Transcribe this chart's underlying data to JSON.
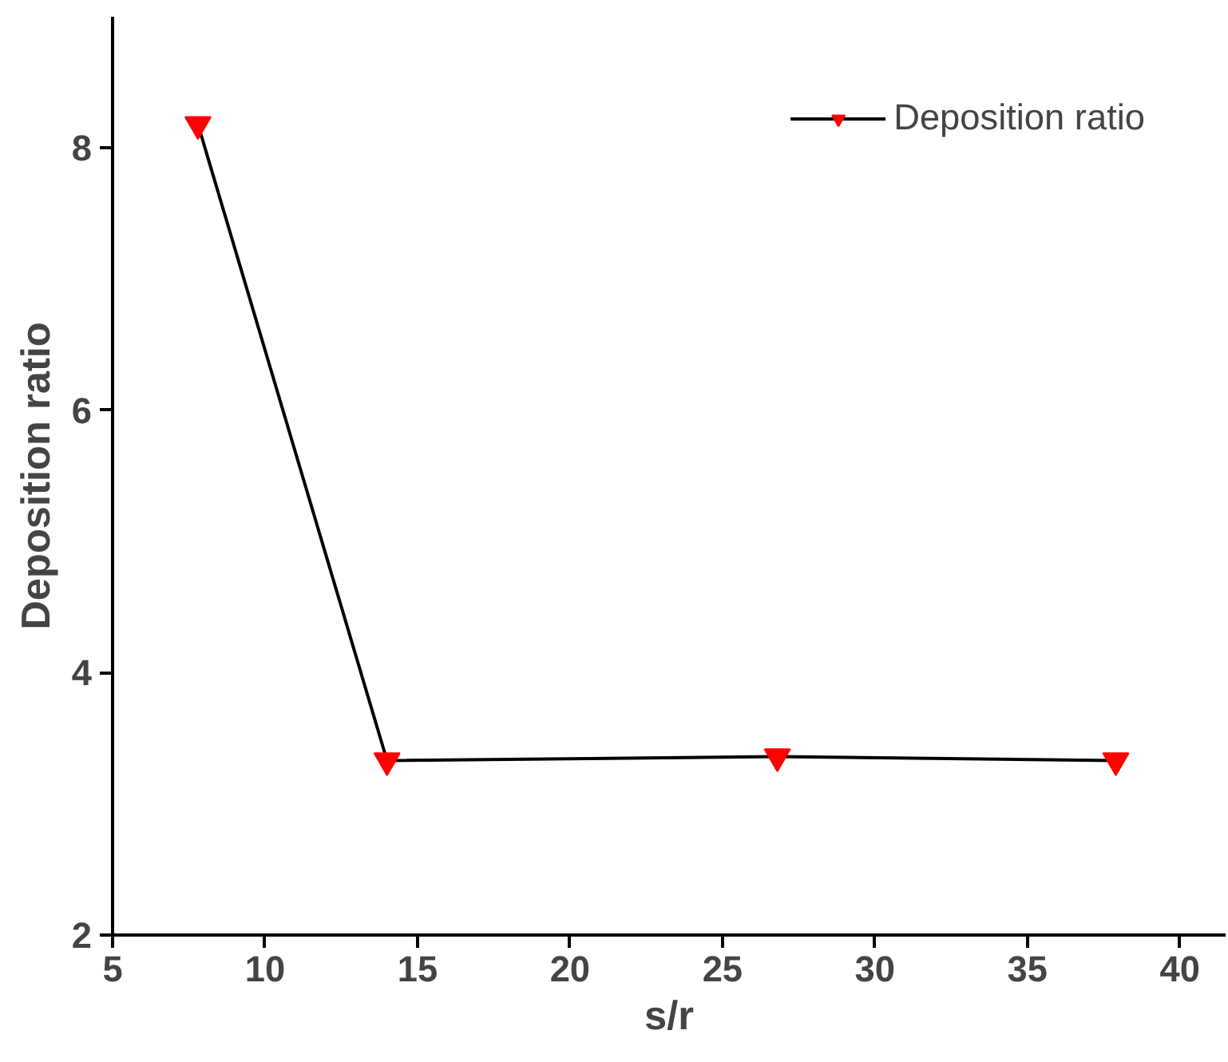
{
  "chart_data": {
    "type": "line",
    "xlabel": "s/r",
    "ylabel": "Deposition ratio",
    "x": [
      7.8,
      14,
      26.8,
      37.9
    ],
    "series": [
      {
        "name": "Deposition ratio",
        "color": "#ff0000",
        "values": [
          8.18,
          3.33,
          3.36,
          3.33
        ]
      }
    ],
    "xlim": [
      5,
      41.5
    ],
    "ylim": [
      2,
      9
    ],
    "xticks": [
      5,
      10,
      15,
      20,
      25,
      30,
      35,
      40
    ],
    "yticks": [
      2,
      4,
      6,
      8
    ],
    "grid": false,
    "legend": "top right",
    "marker": "triangle",
    "line_style": "solid"
  }
}
